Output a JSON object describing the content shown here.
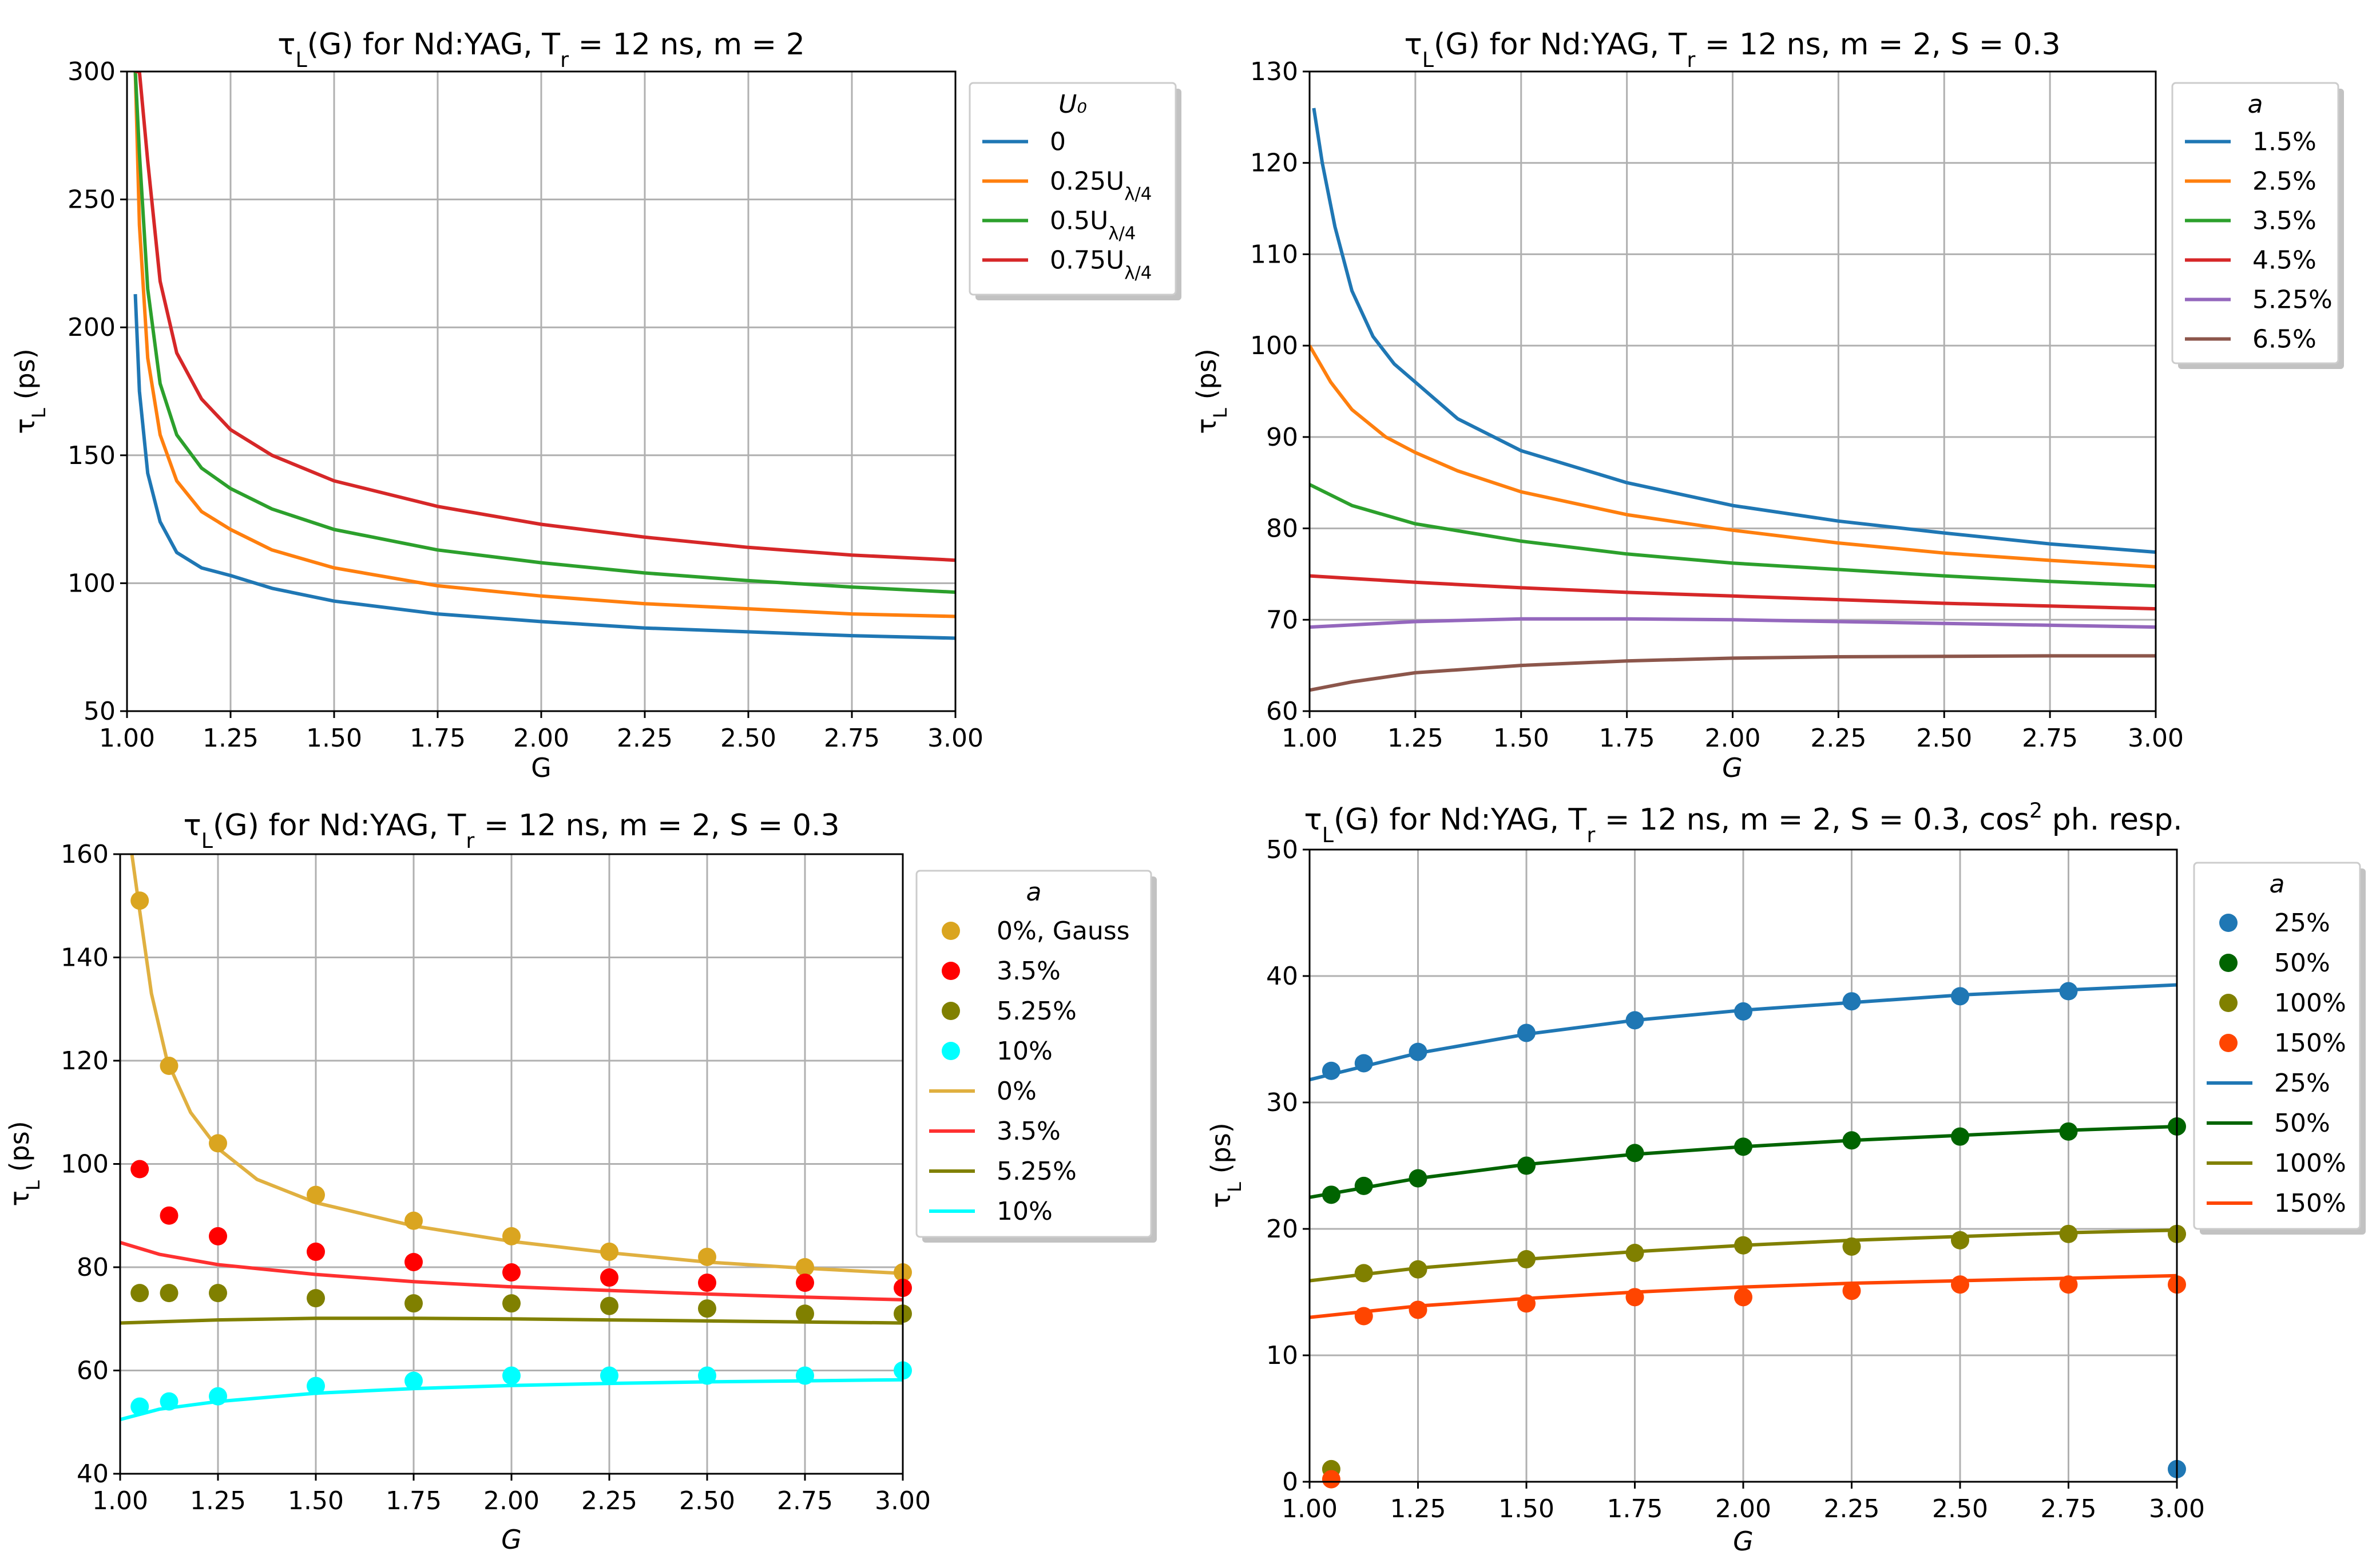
{
  "chart_data": [
    {
      "type": "line",
      "title": "τ_L(G) for Nd:YAG, T_r = 12 ns, m = 2",
      "xlabel": "G",
      "ylabel": "τ_L (ps)",
      "xlim": [
        1.0,
        3.0
      ],
      "ylim": [
        50,
        300
      ],
      "xticks": [
        "1.00",
        "1.25",
        "1.50",
        "1.75",
        "2.00",
        "2.25",
        "2.50",
        "2.75",
        "3.00"
      ],
      "yticks": [
        "50",
        "100",
        "150",
        "200",
        "250",
        "300"
      ],
      "legend_title": "U₀",
      "legend_position": "outside-right",
      "grid": true,
      "series": [
        {
          "name": "0",
          "color": "#1f77b4",
          "marker": "line",
          "x": [
            1.02,
            1.03,
            1.05,
            1.08,
            1.12,
            1.18,
            1.25,
            1.35,
            1.5,
            1.75,
            2.0,
            2.25,
            2.5,
            2.75,
            3.0
          ],
          "y": [
            213,
            175,
            143,
            124,
            112,
            106,
            103,
            98,
            93,
            88,
            85,
            82.5,
            81,
            79.5,
            78.5
          ]
        },
        {
          "name": "0.25U_λ/4",
          "color": "#ff7f0e",
          "marker": "line",
          "x": [
            1.02,
            1.03,
            1.05,
            1.08,
            1.12,
            1.18,
            1.25,
            1.35,
            1.5,
            1.75,
            2.0,
            2.25,
            2.5,
            2.75,
            3.0
          ],
          "y": [
            300,
            240,
            188,
            158,
            140,
            128,
            121,
            113,
            106,
            99,
            95,
            92,
            90,
            88,
            87
          ]
        },
        {
          "name": "0.5U_λ/4",
          "color": "#2ca02c",
          "marker": "line",
          "x": [
            1.02,
            1.03,
            1.05,
            1.08,
            1.12,
            1.18,
            1.25,
            1.35,
            1.5,
            1.75,
            2.0,
            2.25,
            2.5,
            2.75,
            3.0
          ],
          "y": [
            300,
            268,
            215,
            178,
            158,
            145,
            137,
            129,
            121,
            113,
            108,
            104,
            101,
            98.5,
            96.5
          ]
        },
        {
          "name": "0.75U_λ/4",
          "color": "#d62728",
          "marker": "line",
          "x": [
            1.02,
            1.03,
            1.05,
            1.08,
            1.12,
            1.18,
            1.25,
            1.35,
            1.5,
            1.75,
            2.0,
            2.25,
            2.5,
            2.75,
            3.0
          ],
          "y": [
            300,
            300,
            265,
            218,
            190,
            172,
            160,
            150,
            140,
            130,
            123,
            118,
            114,
            111,
            109
          ]
        }
      ]
    },
    {
      "type": "line",
      "title": "τ_L(G) for Nd:YAG, T_r = 12 ns, m = 2, S = 0.3",
      "xlabel": "G",
      "ylabel": "τ_L (ps)",
      "xlim": [
        1.0,
        3.0
      ],
      "ylim": [
        60,
        130
      ],
      "xticks": [
        "1.00",
        "1.25",
        "1.50",
        "1.75",
        "2.00",
        "2.25",
        "2.50",
        "2.75",
        "3.00"
      ],
      "yticks": [
        "60",
        "70",
        "80",
        "90",
        "100",
        "110",
        "120",
        "130"
      ],
      "legend_title": "a",
      "legend_position": "outside-right",
      "grid": true,
      "series": [
        {
          "name": "1.5%",
          "color": "#1f77b4",
          "marker": "line",
          "x": [
            1.01,
            1.03,
            1.06,
            1.1,
            1.15,
            1.2,
            1.25,
            1.35,
            1.5,
            1.75,
            2.0,
            2.25,
            2.5,
            2.75,
            3.0
          ],
          "y": [
            126,
            120,
            113,
            106,
            101,
            98,
            96,
            92,
            88.5,
            85,
            82.5,
            80.8,
            79.5,
            78.3,
            77.4
          ]
        },
        {
          "name": "2.5%",
          "color": "#ff7f0e",
          "marker": "line",
          "x": [
            1.0,
            1.05,
            1.1,
            1.18,
            1.25,
            1.35,
            1.5,
            1.75,
            2.0,
            2.25,
            2.5,
            2.75,
            3.0
          ],
          "y": [
            100,
            96,
            93,
            90,
            88.3,
            86.3,
            84,
            81.5,
            79.8,
            78.4,
            77.3,
            76.5,
            75.8
          ]
        },
        {
          "name": "3.5%",
          "color": "#2ca02c",
          "marker": "line",
          "x": [
            1.0,
            1.1,
            1.25,
            1.5,
            1.75,
            2.0,
            2.25,
            2.5,
            2.75,
            3.0
          ],
          "y": [
            84.8,
            82.5,
            80.5,
            78.6,
            77.2,
            76.2,
            75.5,
            74.8,
            74.2,
            73.7
          ]
        },
        {
          "name": "4.5%",
          "color": "#d62728",
          "marker": "line",
          "x": [
            1.0,
            1.25,
            1.5,
            1.75,
            2.0,
            2.25,
            2.5,
            2.75,
            3.0
          ],
          "y": [
            74.8,
            74.1,
            73.5,
            73.0,
            72.6,
            72.2,
            71.8,
            71.5,
            71.2
          ]
        },
        {
          "name": "5.25%",
          "color": "#9467bd",
          "marker": "line",
          "x": [
            1.0,
            1.25,
            1.5,
            1.75,
            2.0,
            2.25,
            2.5,
            2.75,
            3.0
          ],
          "y": [
            69.2,
            69.8,
            70.1,
            70.1,
            70.0,
            69.8,
            69.6,
            69.4,
            69.2
          ]
        },
        {
          "name": "6.5%",
          "color": "#8c564b",
          "marker": "line",
          "x": [
            1.0,
            1.1,
            1.25,
            1.5,
            1.75,
            2.0,
            2.25,
            2.5,
            2.75,
            3.0
          ],
          "y": [
            62.3,
            63.2,
            64.2,
            65.0,
            65.5,
            65.8,
            65.95,
            66.0,
            66.05,
            66.05
          ]
        }
      ]
    },
    {
      "type": "line",
      "title": "τ_L(G) for Nd:YAG, T_r = 12 ns, m = 2, S = 0.3",
      "xlabel": "G",
      "ylabel": "τ_L (ps)",
      "xlim": [
        1.0,
        3.0
      ],
      "ylim": [
        40,
        160
      ],
      "xticks": [
        "1.00",
        "1.25",
        "1.50",
        "1.75",
        "2.00",
        "2.25",
        "2.50",
        "2.75",
        "3.00"
      ],
      "yticks": [
        "40",
        "60",
        "80",
        "100",
        "120",
        "140",
        "160"
      ],
      "legend_title": "a",
      "legend_position": "outside-right",
      "grid": true,
      "series": [
        {
          "name": "0%, Gauss",
          "color": "#daa520",
          "marker": "point",
          "x": [
            1.05,
            1.125,
            1.25,
            1.5,
            1.75,
            2.0,
            2.25,
            2.5,
            2.75,
            3.0
          ],
          "y": [
            151,
            119,
            104,
            94,
            89,
            86,
            83,
            82,
            80,
            79
          ]
        },
        {
          "name": "3.5%",
          "color": "#ff0000",
          "marker": "point",
          "x": [
            1.05,
            1.125,
            1.25,
            1.5,
            1.75,
            2.0,
            2.25,
            2.5,
            2.75,
            3.0
          ],
          "y": [
            99,
            90,
            86,
            83,
            81,
            79,
            78,
            77,
            77,
            76
          ]
        },
        {
          "name": "5.25%",
          "color": "#808000",
          "marker": "point",
          "x": [
            1.05,
            1.125,
            1.25,
            1.5,
            1.75,
            2.0,
            2.25,
            2.5,
            2.75,
            3.0
          ],
          "y": [
            75,
            75,
            75,
            74,
            73,
            73,
            72.5,
            72,
            71,
            71
          ]
        },
        {
          "name": "10%",
          "color": "#00ffff",
          "marker": "point",
          "x": [
            1.05,
            1.125,
            1.25,
            1.5,
            1.75,
            2.0,
            2.25,
            2.5,
            2.75,
            3.0
          ],
          "y": [
            53,
            54,
            55,
            57,
            58,
            59,
            59,
            59,
            59,
            60
          ]
        },
        {
          "name": "0%",
          "color": "#e0b040",
          "marker": "line",
          "x": [
            1.03,
            1.05,
            1.08,
            1.12,
            1.18,
            1.25,
            1.35,
            1.5,
            1.75,
            2.0,
            2.25,
            2.5,
            2.75,
            3.0
          ],
          "y": [
            160,
            149,
            133,
            120,
            110,
            103,
            97,
            92.5,
            88,
            85,
            82.8,
            81,
            79.8,
            78.8
          ]
        },
        {
          "name": "3.5%",
          "color": "#ff3030",
          "marker": "line",
          "x": [
            1.0,
            1.1,
            1.25,
            1.5,
            1.75,
            2.0,
            2.25,
            2.5,
            2.75,
            3.0
          ],
          "y": [
            84.8,
            82.5,
            80.5,
            78.6,
            77.2,
            76.2,
            75.5,
            74.8,
            74.2,
            73.7
          ]
        },
        {
          "name": "5.25%",
          "color": "#808000",
          "marker": "line",
          "x": [
            1.0,
            1.25,
            1.5,
            1.75,
            2.0,
            2.25,
            2.5,
            2.75,
            3.0
          ],
          "y": [
            69.2,
            69.8,
            70.1,
            70.1,
            70.0,
            69.8,
            69.6,
            69.4,
            69.2
          ]
        },
        {
          "name": "10%",
          "color": "#00ffff",
          "marker": "line",
          "x": [
            1.0,
            1.1,
            1.25,
            1.5,
            1.75,
            2.0,
            2.25,
            2.5,
            2.75,
            3.0
          ],
          "y": [
            50.5,
            52.5,
            54,
            55.6,
            56.5,
            57.1,
            57.5,
            57.8,
            58.0,
            58.2
          ]
        }
      ]
    },
    {
      "type": "line",
      "title": "τ_L(G) for Nd:YAG, T_r = 12 ns, m = 2, S = 0.3, cos² ph. resp.",
      "xlabel": "G",
      "ylabel": "τ_L (ps)",
      "xlim": [
        1.0,
        3.0
      ],
      "ylim": [
        0,
        50
      ],
      "xticks": [
        "1.00",
        "1.25",
        "1.50",
        "1.75",
        "2.00",
        "2.25",
        "2.50",
        "2.75",
        "3.00"
      ],
      "yticks": [
        "0",
        "10",
        "20",
        "30",
        "40",
        "50"
      ],
      "legend_title": "a",
      "legend_position": "outside-right",
      "grid": true,
      "series": [
        {
          "name": "25%",
          "color": "#1f77b4",
          "marker": "point",
          "x": [
            1.05,
            1.125,
            1.25,
            1.5,
            1.75,
            2.0,
            2.25,
            2.5,
            2.75,
            3.0
          ],
          "y": [
            32.5,
            33.1,
            34,
            35.5,
            36.5,
            37.2,
            38,
            38.4,
            38.8,
            1
          ]
        },
        {
          "name": "50%",
          "color": "#006400",
          "marker": "point",
          "x": [
            1.05,
            1.125,
            1.25,
            1.5,
            1.75,
            2.0,
            2.25,
            2.5,
            2.75,
            3.0
          ],
          "y": [
            22.7,
            23.4,
            24,
            25,
            26,
            26.5,
            27,
            27.3,
            27.7,
            28.1
          ]
        },
        {
          "name": "100%",
          "color": "#808000",
          "marker": "point",
          "x": [
            1.05,
            1.125,
            1.25,
            1.5,
            1.75,
            2.0,
            2.25,
            2.5,
            2.75,
            3.0
          ],
          "y": [
            1,
            16.5,
            16.8,
            17.6,
            18.1,
            18.7,
            18.6,
            19.1,
            19.6,
            19.6
          ]
        },
        {
          "name": "150%",
          "color": "#ff4500",
          "marker": "point",
          "x": [
            1.05,
            1.125,
            1.25,
            1.5,
            1.75,
            2.0,
            2.25,
            2.5,
            2.75,
            3.0
          ],
          "y": [
            0.2,
            13.1,
            13.6,
            14.1,
            14.6,
            14.6,
            15.1,
            15.6,
            15.6,
            15.6
          ]
        },
        {
          "name": "25%",
          "color": "#1f77b4",
          "marker": "line",
          "x": [
            1.0,
            1.25,
            1.5,
            1.75,
            2.0,
            2.25,
            2.5,
            2.75,
            3.0
          ],
          "y": [
            31.8,
            33.9,
            35.4,
            36.5,
            37.3,
            37.9,
            38.5,
            38.9,
            39.3
          ]
        },
        {
          "name": "50%",
          "color": "#006400",
          "marker": "line",
          "x": [
            1.0,
            1.25,
            1.5,
            1.75,
            2.0,
            2.25,
            2.5,
            2.75,
            3.0
          ],
          "y": [
            22.5,
            24.0,
            25.1,
            25.9,
            26.5,
            27.0,
            27.4,
            27.8,
            28.1
          ]
        },
        {
          "name": "100%",
          "color": "#808000",
          "marker": "line",
          "x": [
            1.0,
            1.25,
            1.5,
            1.75,
            2.0,
            2.25,
            2.5,
            2.75,
            3.0
          ],
          "y": [
            15.9,
            16.9,
            17.6,
            18.2,
            18.7,
            19.1,
            19.4,
            19.7,
            19.9
          ]
        },
        {
          "name": "150%",
          "color": "#ff4500",
          "marker": "line",
          "x": [
            1.0,
            1.25,
            1.5,
            1.75,
            2.0,
            2.25,
            2.5,
            2.75,
            3.0
          ],
          "y": [
            13.0,
            13.9,
            14.5,
            15.0,
            15.4,
            15.7,
            15.9,
            16.1,
            16.3
          ]
        }
      ]
    }
  ]
}
